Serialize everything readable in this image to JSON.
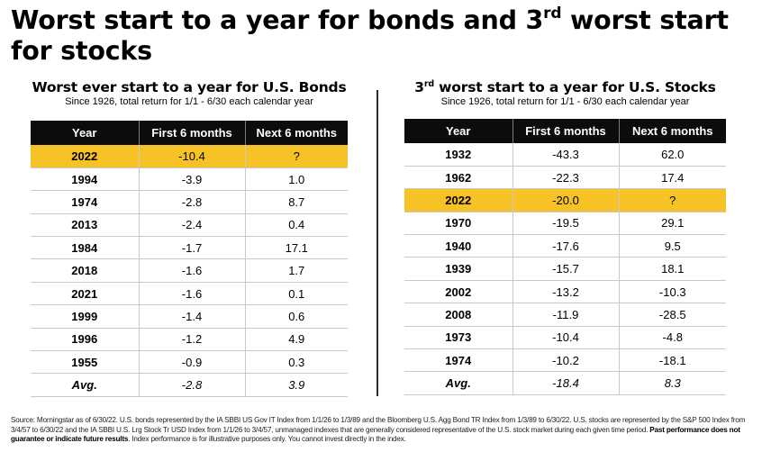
{
  "title": {
    "part1": "Worst start to a year for bonds and 3",
    "sup": "rd",
    "part2": " worst start for stocks"
  },
  "highlight_color": "#f7c226",
  "header_color": "#0c0c0c",
  "chart_data": [
    {
      "type": "table",
      "title": "Worst ever start to a year for U.S. Bonds",
      "subtitle": "Since 1926, total return for 1/1 - 6/30 each calendar year",
      "columns": [
        "Year",
        "First 6  months",
        "Next 6 months"
      ],
      "rows": [
        [
          "2022",
          "-10.4",
          "?"
        ],
        [
          "1994",
          "-3.9",
          "1.0"
        ],
        [
          "1974",
          "-2.8",
          "8.7"
        ],
        [
          "2013",
          "-2.4",
          "0.4"
        ],
        [
          "1984",
          "-1.7",
          "17.1"
        ],
        [
          "2018",
          "-1.6",
          "1.7"
        ],
        [
          "2021",
          "-1.6",
          "0.1"
        ],
        [
          "1999",
          "-1.4",
          "0.6"
        ],
        [
          "1996",
          "-1.2",
          "4.9"
        ],
        [
          "1955",
          "-0.9",
          "0.3"
        ]
      ],
      "average": [
        "Avg.",
        "-2.8",
        "3.9"
      ],
      "highlight_row": "2022"
    },
    {
      "type": "table",
      "title_prefix": "3",
      "title_sup": "rd",
      "title_rest": " worst start to a year for U.S. Stocks",
      "subtitle": "Since 1926, total return for 1/1 - 6/30 each calendar year",
      "columns": [
        "Year",
        "First 6  months",
        "Next 6 months"
      ],
      "rows": [
        [
          "1932",
          "-43.3",
          "62.0"
        ],
        [
          "1962",
          "-22.3",
          "17.4"
        ],
        [
          "2022",
          "-20.0",
          "?"
        ],
        [
          "1970",
          "-19.5",
          "29.1"
        ],
        [
          "1940",
          "-17.6",
          "9.5"
        ],
        [
          "1939",
          "-15.7",
          "18.1"
        ],
        [
          "2002",
          "-13.2",
          "-10.3"
        ],
        [
          "2008",
          "-11.9",
          "-28.5"
        ],
        [
          "1973",
          "-10.4",
          "-4.8"
        ],
        [
          "1974",
          "-10.2",
          "-18.1"
        ]
      ],
      "average": [
        "Avg.",
        "-18.4",
        "8.3"
      ],
      "highlight_row": "2022"
    }
  ],
  "footnote": {
    "text": "Source: Morningstar as of 6/30/22. U.S. bonds represented by the IA SBBI US Gov IT Index from 1/1/26 to 1/3/89 and the Bloomberg U.S. Agg Bond TR Index from 1/3/89 to 6/30/22.  U.S. stocks are represented by the S&P 500 Index from 3/4/57 to 6/30/22 and the IA SBBI U.S. Lrg Stock Tr USD Index from 1/1/26 to 3/4/57, unmanaged indexes that are generally considered representative of the U.S. stock market during each given time period. ",
    "bold": "Past performance does not guarantee or indicate future results",
    "tail": ". Index performance is for illustrative purposes only. You cannot invest directly in the index."
  }
}
